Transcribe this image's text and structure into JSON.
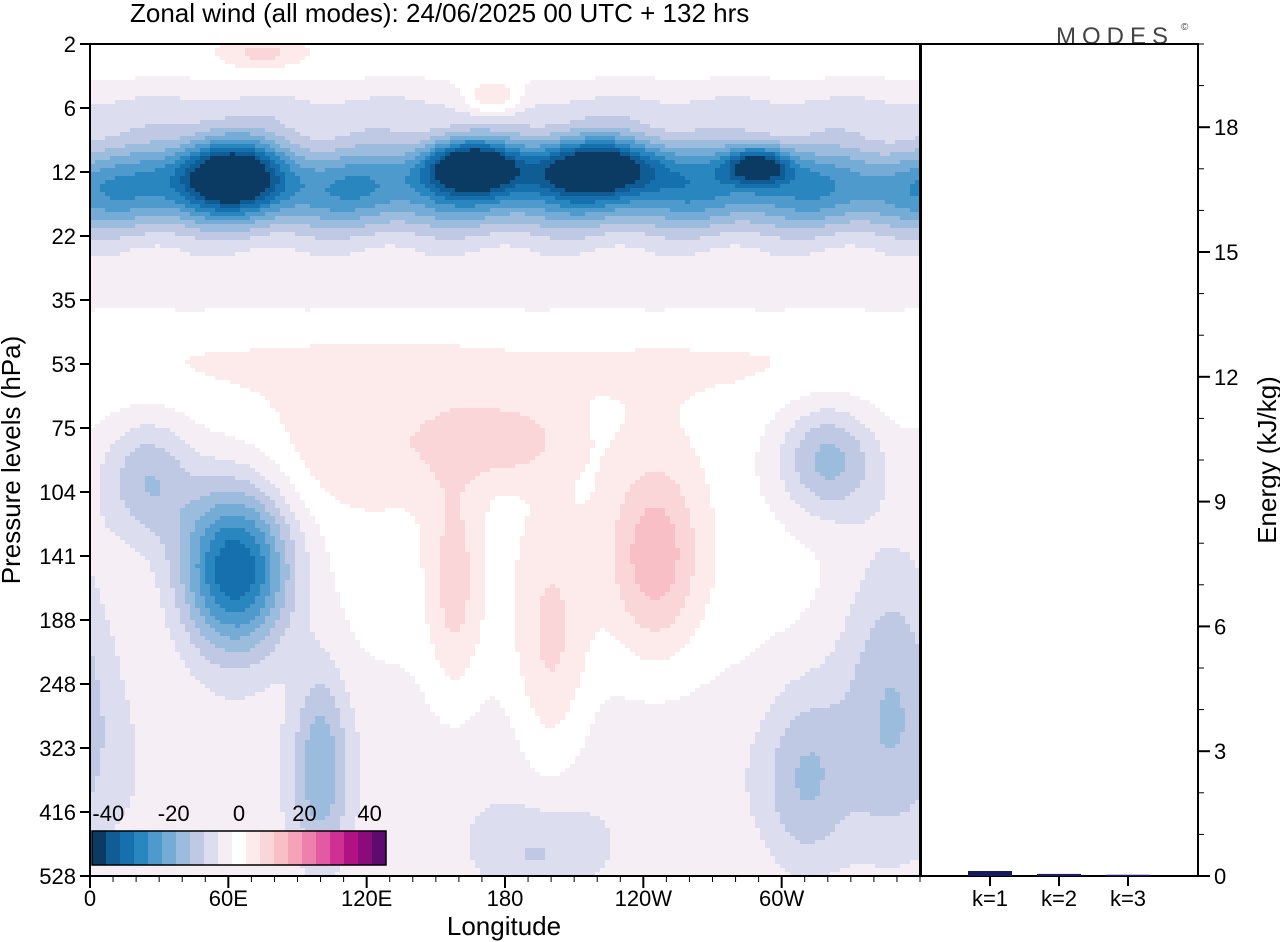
{
  "chart_data": {
    "type": "heatmap",
    "title": "Zonal wind (all modes):  24/06/2025  00 UTC  + 132 hrs",
    "logo_text": "MODES",
    "logo_mark": "©",
    "xlabel": "Longitude",
    "ylabel": "Pressure levels (hPa)",
    "x_ticks": [
      "0",
      "60E",
      "120E",
      "180",
      "120W",
      "60W"
    ],
    "y_ticks": [
      "2",
      "6",
      "12",
      "22",
      "35",
      "53",
      "75",
      "104",
      "141",
      "188",
      "248",
      "323",
      "416",
      "528"
    ],
    "colorbar": {
      "tick_labels": [
        "-40",
        "-20",
        "0",
        "20",
        "40"
      ],
      "range": [
        -45,
        45
      ],
      "colors": [
        "#0b3a63",
        "#0f5d94",
        "#1570ad",
        "#2a86bf",
        "#4f9acc",
        "#75acd6",
        "#9cbcdd",
        "#bfc9e3",
        "#dcddee",
        "#f5eff5",
        "#ffffff",
        "#fdebec",
        "#fbd6d9",
        "#f8bfc6",
        "#f4a3b9",
        "#ee80ae",
        "#e45aa2",
        "#d02f93",
        "#b21184",
        "#8a0b7a",
        "#5e0a6e"
      ]
    },
    "energy_panel": {
      "ylabel": "Energy (kJ/kg)",
      "y_ticks": [
        "0",
        "3",
        "6",
        "9",
        "12",
        "15",
        "18"
      ],
      "ylim": [
        0,
        20
      ],
      "categories": [
        "k=1",
        "k=2",
        "k=3"
      ],
      "values": [
        0.12,
        0.05,
        0.03
      ],
      "bar_color": "#1a1a5e"
    },
    "field_features": [
      {
        "lon": 60,
        "level_index": 2.0,
        "lon_halfwidth": 22,
        "level_halfwidth": 0.55,
        "value": -30
      },
      {
        "lon": 165,
        "level_index": 1.9,
        "lon_halfwidth": 20,
        "level_halfwidth": 0.4,
        "value": -34
      },
      {
        "lon": 220,
        "level_index": 1.9,
        "lon_halfwidth": 30,
        "level_halfwidth": 0.45,
        "value": -30
      },
      {
        "lon": 290,
        "level_index": 1.9,
        "lon_halfwidth": 14,
        "level_halfwidth": 0.3,
        "value": -30
      },
      {
        "lon": 175,
        "level_index": 0.85,
        "lon_halfwidth": 12,
        "level_halfwidth": 0.28,
        "value": 12
      },
      {
        "lon": 75,
        "level_index": 0.15,
        "lon_halfwidth": 18,
        "level_halfwidth": 0.25,
        "value": 8
      },
      {
        "lon": 63,
        "level_index": 8.2,
        "lon_halfwidth": 24,
        "level_halfwidth": 1.3,
        "value": -36
      },
      {
        "lon": 25,
        "level_index": 6.8,
        "lon_halfwidth": 20,
        "level_halfwidth": 1.0,
        "value": -14
      },
      {
        "lon": 320,
        "level_index": 6.5,
        "lon_halfwidth": 22,
        "level_halfwidth": 0.9,
        "value": -16
      },
      {
        "lon": 120,
        "level_index": 6.3,
        "lon_halfwidth": 40,
        "level_halfwidth": 1.0,
        "value": 6
      },
      {
        "lon": 178,
        "level_index": 6.2,
        "lon_halfwidth": 28,
        "level_halfwidth": 0.6,
        "value": 9
      },
      {
        "lon": 245,
        "level_index": 8.0,
        "lon_halfwidth": 20,
        "level_halfwidth": 1.5,
        "value": 14
      },
      {
        "lon": 200,
        "level_index": 9.5,
        "lon_halfwidth": 16,
        "level_halfwidth": 2.0,
        "value": 9
      },
      {
        "lon": 158,
        "level_index": 8.5,
        "lon_halfwidth": 12,
        "level_halfwidth": 1.8,
        "value": 9
      },
      {
        "lon": 348,
        "level_index": 10.0,
        "lon_halfwidth": 24,
        "level_halfwidth": 2.5,
        "value": -12
      },
      {
        "lon": 100,
        "level_index": 11.3,
        "lon_halfwidth": 12,
        "level_halfwidth": 1.6,
        "value": -14
      },
      {
        "lon": 310,
        "level_index": 11.5,
        "lon_halfwidth": 18,
        "level_halfwidth": 1.5,
        "value": -10
      },
      {
        "lon": 195,
        "level_index": 12.7,
        "lon_halfwidth": 30,
        "level_halfwidth": 0.8,
        "value": -8
      }
    ]
  }
}
